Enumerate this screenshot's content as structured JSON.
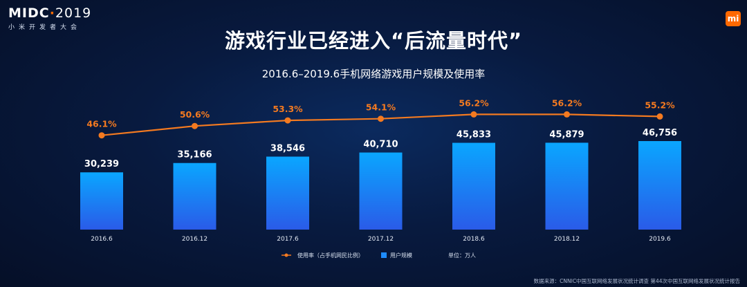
{
  "header": {
    "logo_brand": "MIDC",
    "logo_year": "2019",
    "logo_subtitle": "小米开发者大会",
    "mi_badge": "mi",
    "page_title": "游戏行业已经进入“后流量时代”"
  },
  "chart_data": {
    "type": "bar",
    "title": "2016.6–2019.6手机网络游戏用户规模及使用率",
    "categories": [
      "2016.6",
      "2016.12",
      "2017.6",
      "2017.12",
      "2018.6",
      "2018.12",
      "2019.6"
    ],
    "series": [
      {
        "name": "用户规模",
        "type": "bar",
        "values": [
          30239,
          35166,
          38546,
          40710,
          45833,
          45879,
          46756
        ],
        "labels": [
          "30,239",
          "35,166",
          "38,546",
          "40,710",
          "45,833",
          "45,879",
          "46,756"
        ],
        "color": "#1e8cff"
      },
      {
        "name": "使用率（占手机网民比例）",
        "type": "line",
        "values": [
          46.1,
          50.6,
          53.3,
          54.1,
          56.2,
          56.2,
          55.2
        ],
        "labels": [
          "46.1%",
          "50.6%",
          "53.3%",
          "54.1%",
          "56.2%",
          "56.2%",
          "55.2%"
        ],
        "color": "#f47a20"
      }
    ],
    "unit_label": "单位：万人",
    "legend_position": "bottom-center",
    "grid": false
  },
  "source": "数据来源：CNNIC中国互联网络发展状况统计调查 第44次中国互联网络发展状况统计报告",
  "colors": {
    "background": "#081a3f",
    "bar_top": "#0aa6ff",
    "bar_bottom": "#2a5be8",
    "line": "#f47a20",
    "accent": "#ff6900"
  }
}
